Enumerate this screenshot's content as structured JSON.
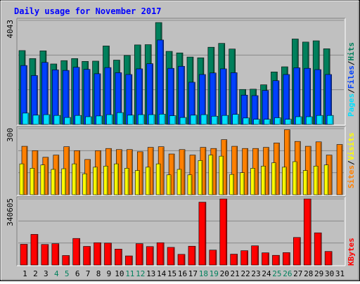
{
  "title": "Daily usage for November 2017",
  "colors": {
    "background": "#c0c0c0",
    "title": "#0000ff",
    "hits": "#00805c",
    "files": "#0040ff",
    "pages": "#00e0ff",
    "visits": "#ffff00",
    "sites": "#ff8000",
    "kbytes": "#ff0000",
    "weekday_label": "#000000",
    "weekend_label": "#00805c"
  },
  "panels": {
    "top": {
      "max_label": "4043",
      "right_labels": [
        "Pages",
        "Files",
        "Hits"
      ]
    },
    "middle": {
      "max_label": "300",
      "right_labels": [
        "Sites",
        "Visits"
      ]
    },
    "bottom": {
      "max_label": "340605",
      "right_labels": [
        "KBytes"
      ]
    }
  },
  "chart_data": {
    "type": "bar",
    "title": "Daily usage for November 2017",
    "categories": [
      "1",
      "2",
      "3",
      "4",
      "5",
      "6",
      "7",
      "8",
      "9",
      "10",
      "11",
      "12",
      "13",
      "14",
      "15",
      "16",
      "17",
      "18",
      "19",
      "20",
      "21",
      "22",
      "23",
      "24",
      "25",
      "26",
      "27",
      "28",
      "29",
      "30",
      "31"
    ],
    "weekend_days": [
      "4",
      "5",
      "11",
      "12",
      "18",
      "19",
      "25",
      "26"
    ],
    "panels": [
      {
        "name": "top",
        "ylim": [
          0,
          4043
        ],
        "series": [
          {
            "name": "Hits",
            "values": [
              2870,
              2560,
              2860,
              2350,
              2480,
              2560,
              2450,
              2460,
              3050,
              2500,
              2680,
              3090,
              3100,
              3960,
              2840,
              2780,
              2620,
              2590,
              3000,
              3150,
              2930,
              1360,
              1370,
              1540,
              2040,
              2240,
              3320,
              3200,
              3250,
              2940,
              0
            ]
          },
          {
            "name": "Files",
            "values": [
              2290,
              1900,
              2410,
              2120,
              2100,
              2220,
              2140,
              1970,
              2210,
              2010,
              1940,
              2160,
              2360,
              3280,
              2180,
              2260,
              1640,
              1940,
              2000,
              2160,
              2010,
              1140,
              1120,
              1320,
              1700,
              1940,
              2200,
              2180,
              2130,
              1940,
              0
            ]
          },
          {
            "name": "Pages",
            "values": [
              440,
              360,
              380,
              350,
              270,
              350,
              300,
              330,
              380,
              460,
              360,
              380,
              380,
              400,
              340,
              270,
              360,
              380,
              320,
              350,
              390,
              250,
              200,
              200,
              260,
              200,
              300,
              300,
              350,
              350,
              0
            ]
          }
        ]
      },
      {
        "name": "middle",
        "ylim": [
          0,
          300
        ],
        "series": [
          {
            "name": "Sites",
            "values": [
              220,
              200,
              170,
              180,
              218,
              200,
              160,
              200,
              210,
              205,
              205,
              195,
              215,
              218,
              185,
              205,
              180,
              215,
              210,
              250,
              220,
              210,
              210,
              215,
              235,
              295,
              242,
              220,
              240,
              180,
              228
            ]
          },
          {
            "name": "Visits",
            "values": [
              140,
              120,
              135,
              115,
              118,
              140,
              95,
              125,
              130,
              140,
              120,
              110,
              125,
              140,
              90,
              115,
              90,
              155,
              180,
              175,
              92,
              100,
              120,
              130,
              145,
              125,
              150,
              110,
              130,
              135,
              0
            ]
          }
        ]
      },
      {
        "name": "bottom",
        "ylim": [
          0,
          340605
        ],
        "series": [
          {
            "name": "KBytes",
            "values": [
              107000,
              158000,
              106000,
              110000,
              49000,
              137000,
              96000,
              115000,
              113000,
              82000,
              47000,
              110000,
              95000,
              115000,
              91000,
              55000,
              97000,
              324000,
              77000,
              340605,
              56000,
              74000,
              99000,
              63000,
              50000,
              64000,
              142000,
              340605,
              166000,
              70000,
              0
            ]
          }
        ]
      }
    ]
  }
}
